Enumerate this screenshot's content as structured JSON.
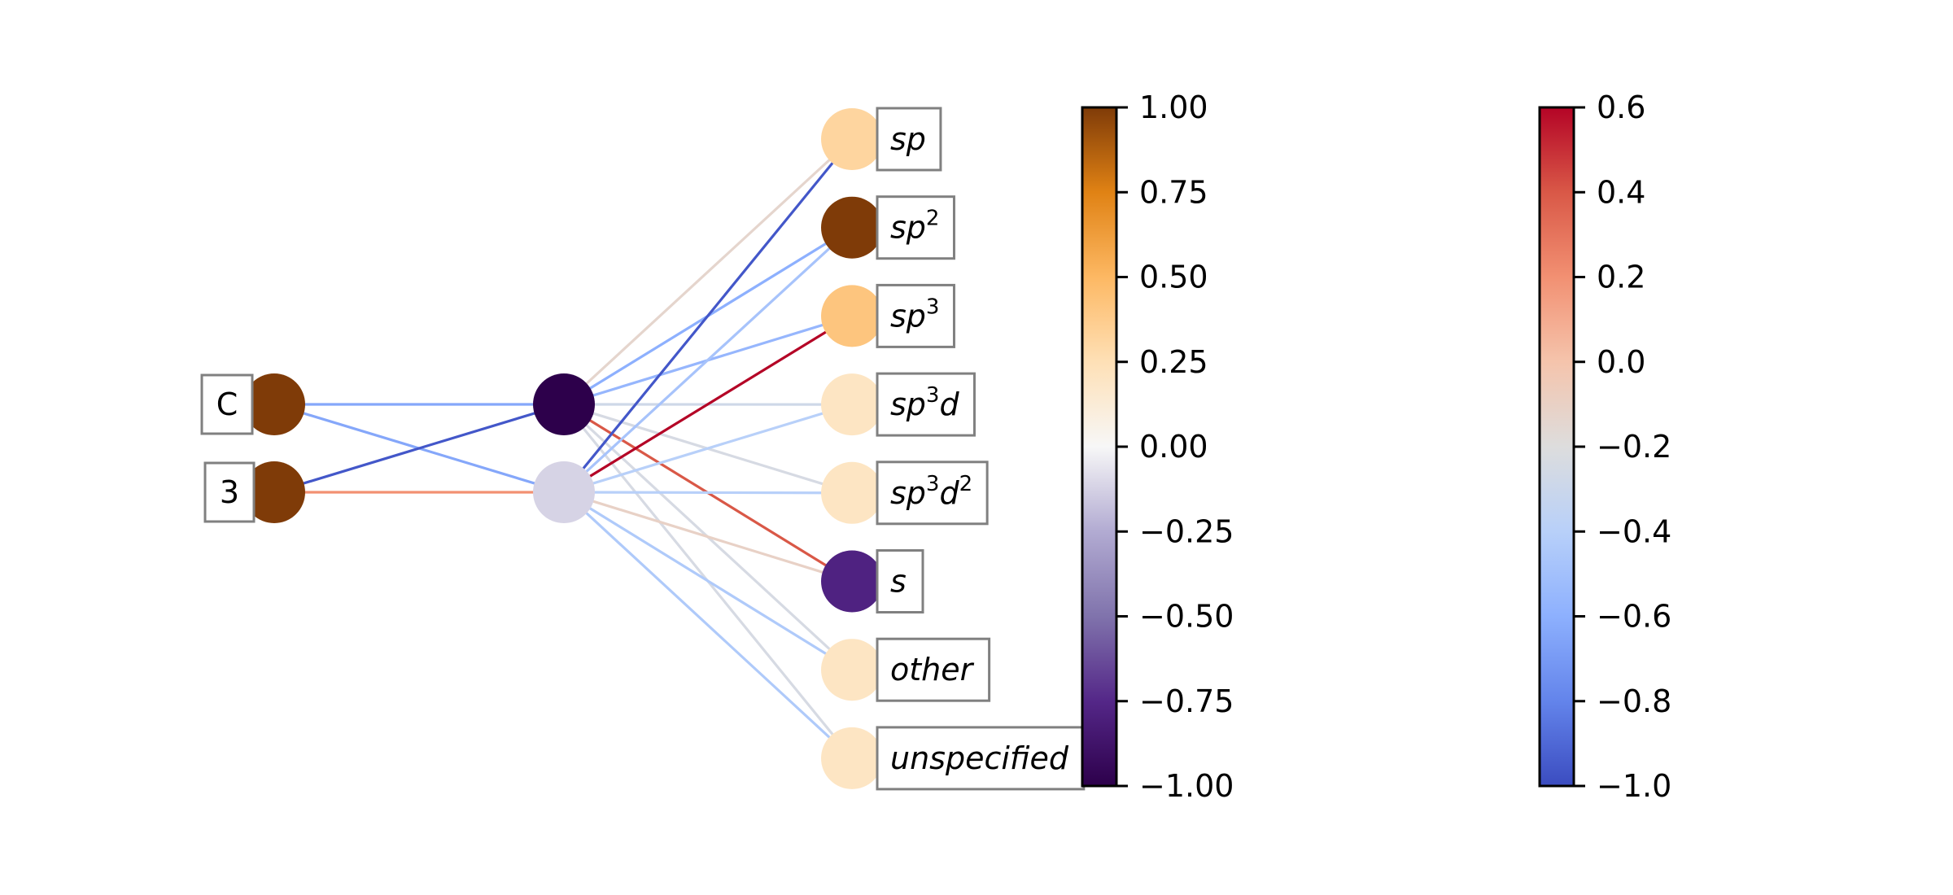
{
  "diagram": {
    "type": "network",
    "input_nodes": [
      {
        "label": "C",
        "value": 1.0
      },
      {
        "label": "3",
        "value": 1.0
      }
    ],
    "hidden_nodes": [
      {
        "value": -1.0
      },
      {
        "value": -0.12
      }
    ],
    "output_nodes": [
      {
        "label": "sp",
        "sup": "",
        "suffix": "",
        "sup2": "",
        "value": 0.32
      },
      {
        "label": "sp",
        "sup": "2",
        "suffix": "",
        "sup2": "",
        "value": 1.0
      },
      {
        "label": "sp",
        "sup": "3",
        "suffix": "",
        "sup2": "",
        "value": 0.42
      },
      {
        "label": "sp",
        "sup": "3",
        "suffix": "d",
        "sup2": "",
        "value": 0.2
      },
      {
        "label": "sp",
        "sup": "3",
        "suffix": "d",
        "sup2": "2",
        "value": 0.2
      },
      {
        "label": "s",
        "sup": "",
        "suffix": "",
        "sup2": "",
        "value": -0.78
      },
      {
        "label": "other",
        "sup": "",
        "suffix": "",
        "sup2": "",
        "value": 0.2
      },
      {
        "label": "unspecified",
        "sup": "",
        "suffix": "",
        "sup2": "",
        "value": 0.2
      }
    ],
    "edges_input_hidden": [
      {
        "from": 0,
        "to": 0,
        "weight": -0.55
      },
      {
        "from": 0,
        "to": 1,
        "weight": -0.55
      },
      {
        "from": 1,
        "to": 0,
        "weight": -0.95
      },
      {
        "from": 1,
        "to": 1,
        "weight": 0.3
      }
    ],
    "edges_hidden_output": [
      {
        "from": 0,
        "to": 0,
        "weight": 0.05
      },
      {
        "from": 0,
        "to": 1,
        "weight": -0.5
      },
      {
        "from": 0,
        "to": 2,
        "weight": -0.45
      },
      {
        "from": 0,
        "to": 3,
        "weight": -0.1
      },
      {
        "from": 0,
        "to": 4,
        "weight": -0.05
      },
      {
        "from": 0,
        "to": 5,
        "weight": 0.45
      },
      {
        "from": 0,
        "to": 6,
        "weight": -0.05
      },
      {
        "from": 0,
        "to": 7,
        "weight": -0.05
      },
      {
        "from": 1,
        "to": 0,
        "weight": -0.95
      },
      {
        "from": 1,
        "to": 1,
        "weight": -0.35
      },
      {
        "from": 1,
        "to": 2,
        "weight": 0.6
      },
      {
        "from": 1,
        "to": 3,
        "weight": -0.25
      },
      {
        "from": 1,
        "to": 4,
        "weight": -0.25
      },
      {
        "from": 1,
        "to": 5,
        "weight": 0.07
      },
      {
        "from": 1,
        "to": 6,
        "weight": -0.3
      },
      {
        "from": 1,
        "to": 7,
        "weight": -0.3
      }
    ]
  },
  "node_colorbar": {
    "range": [
      -1.0,
      1.0
    ],
    "ticks": [
      "1.00",
      "0.75",
      "0.50",
      "0.25",
      "0.00",
      "−0.25",
      "−0.50",
      "−0.75",
      "−1.00"
    ],
    "colormap": "PuOr_r"
  },
  "edge_colorbar": {
    "range": [
      -1.0,
      0.6
    ],
    "ticks": [
      "0.6",
      "0.4",
      "0.2",
      "0.0",
      "−0.2",
      "−0.4",
      "−0.6",
      "−0.8",
      "−1.0"
    ],
    "colormap": "coolwarm"
  }
}
